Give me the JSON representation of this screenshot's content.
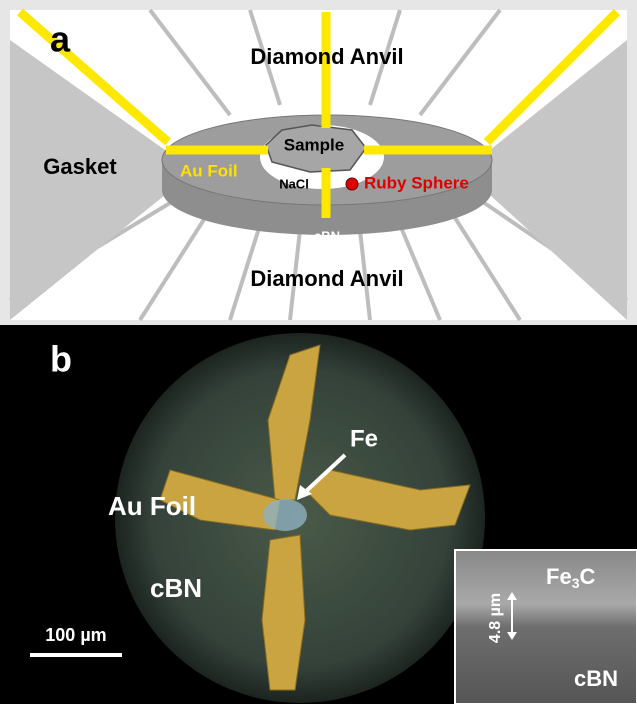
{
  "panel_a": {
    "label": "a",
    "top_anvil": "Diamond Anvil",
    "gasket": "Gasket",
    "au_foil": "Au Foil",
    "sample": "Sample",
    "nacl": "NaCl",
    "ruby": "Ruby Sphere",
    "cbn": "cBN",
    "bottom_anvil": "Diamond Anvil"
  },
  "panel_b": {
    "label": "b",
    "fe": "Fe",
    "au_foil": "Au Foil",
    "cbn": "cBN",
    "scale_bar": "100 µm",
    "inset": {
      "phase": {
        "base": "Fe",
        "sub": "3",
        "tail": "C"
      },
      "thickness": "4.8 µm",
      "cbn": "cBN"
    }
  }
}
